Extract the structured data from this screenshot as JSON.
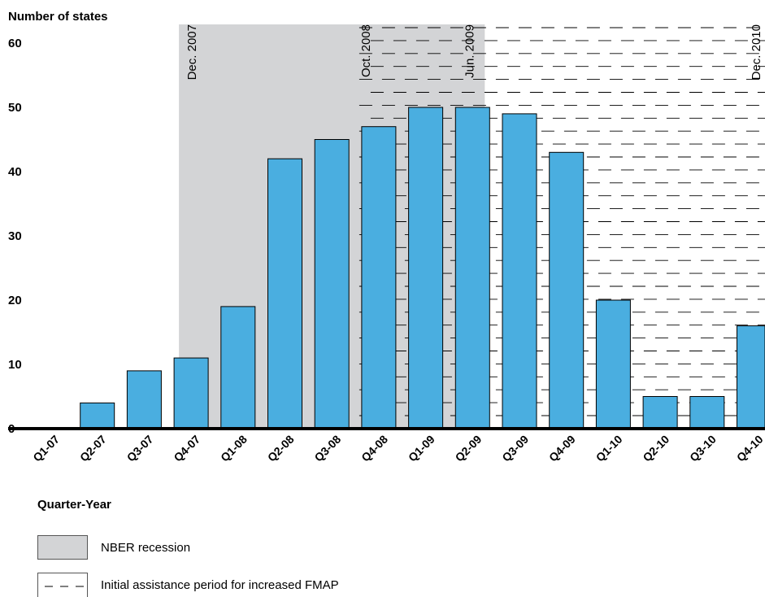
{
  "chart_data": {
    "type": "bar",
    "title": "",
    "ylabel": "Number of states",
    "xlabel": "Quarter-Year",
    "ylim": [
      0,
      60
    ],
    "yticks": [
      0,
      10,
      20,
      30,
      40,
      50,
      60
    ],
    "categories": [
      "Q1-07",
      "Q2-07",
      "Q3-07",
      "Q4-07",
      "Q1-08",
      "Q2-08",
      "Q3-08",
      "Q4-08",
      "Q1-09",
      "Q2-09",
      "Q3-09",
      "Q4-09",
      "Q1-10",
      "Q2-10",
      "Q3-10",
      "Q4-10"
    ],
    "values": [
      0,
      4,
      9,
      11,
      19,
      42,
      45,
      47,
      50,
      50,
      49,
      43,
      20,
      5,
      5,
      16
    ],
    "bar_color": "#4aaee0",
    "recession_color": "#d3d4d6",
    "grid": false,
    "annotations": [
      {
        "text": "Dec. 2007"
      },
      {
        "text": "Oct. 2008"
      },
      {
        "text": "Jun. 2009"
      },
      {
        "text": "Dec. 2010"
      }
    ],
    "legend": {
      "placement": "bottom-left",
      "entries": [
        {
          "label": "NBER recession",
          "style": "gray-fill"
        },
        {
          "label": "Initial assistance period for increased FMAP",
          "style": "dashed"
        }
      ]
    }
  }
}
